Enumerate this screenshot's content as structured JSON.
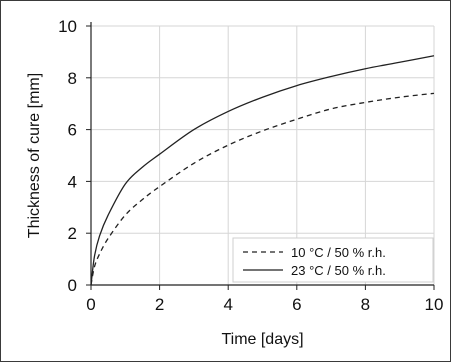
{
  "chart_data": {
    "type": "line",
    "xlabel": "Time [days]",
    "ylabel": "Thickness of cure [mm]",
    "xlim": [
      0,
      10
    ],
    "ylim": [
      0,
      10
    ],
    "x_ticks": [
      "0",
      "2",
      "4",
      "6",
      "8",
      "10"
    ],
    "y_ticks": [
      "0",
      "2",
      "4",
      "6",
      "8",
      "10"
    ],
    "grid": true,
    "legend_position": "bottom-right",
    "series": [
      {
        "name": "10 °C / 50 % r.h.",
        "style": "dashed",
        "color": "#222222",
        "x": [
          0,
          0.1,
          0.25,
          0.5,
          1,
          1.5,
          2,
          3,
          4,
          5,
          6,
          7,
          8,
          9,
          10
        ],
        "y": [
          0,
          0.7,
          1.2,
          1.8,
          2.7,
          3.3,
          3.8,
          4.7,
          5.4,
          5.95,
          6.4,
          6.8,
          7.05,
          7.25,
          7.4
        ]
      },
      {
        "name": "23 °C / 50 % r.h.",
        "style": "solid",
        "color": "#222222",
        "x": [
          0,
          0.1,
          0.25,
          0.5,
          1,
          1.5,
          2,
          3,
          4,
          5,
          6,
          7,
          8,
          9,
          10
        ],
        "y": [
          0,
          1.1,
          1.9,
          2.7,
          3.9,
          4.55,
          5.05,
          6.0,
          6.7,
          7.25,
          7.7,
          8.05,
          8.35,
          8.6,
          8.85
        ]
      }
    ]
  }
}
